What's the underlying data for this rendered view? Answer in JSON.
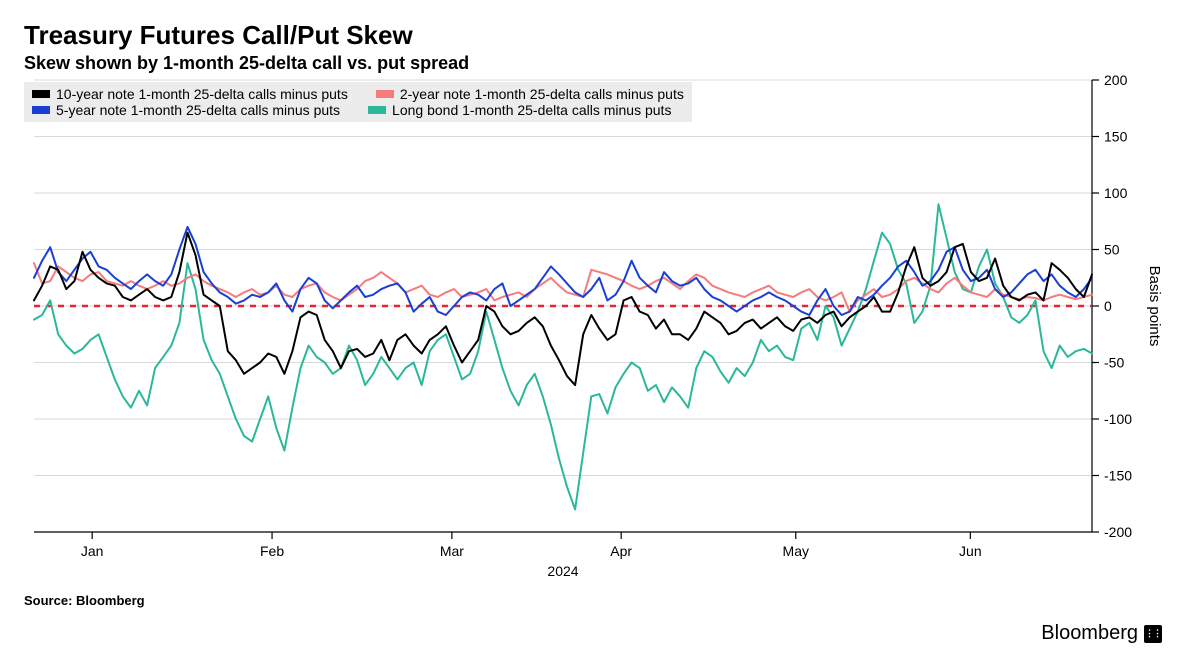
{
  "title": "Treasury Futures Call/Put Skew",
  "subtitle": "Skew shown by 1-month 25-delta call vs. put spread",
  "source": "Source: Bloomberg",
  "brand": "Bloomberg",
  "chart": {
    "type": "line",
    "background_color": "#ffffff",
    "grid_color": "#d9d9d9",
    "axis_color": "#000000",
    "zero_line_color": "#e32636",
    "zero_line_dash": "6,6",
    "zero_line_width": 2.5,
    "line_width": 2,
    "ylabel": "Basis points",
    "ylabel_fontsize": 15,
    "tick_fontsize": 14,
    "ylim": [
      -200,
      200
    ],
    "ytick_step": 50,
    "yticks": [
      -200,
      -150,
      -100,
      -50,
      0,
      50,
      100,
      150,
      200
    ],
    "x_year_label": "2024",
    "xticks": [
      "Jan",
      "Feb",
      "Mar",
      "Apr",
      "May",
      "Jun"
    ],
    "xtick_positions": [
      0.055,
      0.225,
      0.395,
      0.555,
      0.72,
      0.885
    ],
    "n_points": 132,
    "legend_bg": "#ececec",
    "legend_fontsize": 14,
    "series": [
      {
        "name": "10-year note 1-month 25-delta calls minus puts",
        "color": "#000000",
        "data": [
          5,
          18,
          35,
          32,
          15,
          22,
          48,
          32,
          25,
          20,
          18,
          8,
          5,
          10,
          15,
          8,
          5,
          8,
          30,
          65,
          45,
          10,
          5,
          0,
          -40,
          -48,
          -60,
          -55,
          -50,
          -42,
          -45,
          -60,
          -40,
          -10,
          -5,
          -8,
          -30,
          -40,
          -55,
          -40,
          -38,
          -45,
          -42,
          -30,
          -48,
          -30,
          -25,
          -35,
          -42,
          -30,
          -25,
          -18,
          -35,
          -50,
          -40,
          -30,
          0,
          -5,
          -18,
          -25,
          -22,
          -15,
          -10,
          -18,
          -35,
          -48,
          -62,
          -70,
          -25,
          -8,
          -20,
          -30,
          -25,
          5,
          8,
          -5,
          -8,
          -20,
          -12,
          -25,
          -25,
          -30,
          -20,
          -5,
          -10,
          -15,
          -25,
          -22,
          -15,
          -12,
          -20,
          -15,
          -10,
          -18,
          -22,
          -12,
          -10,
          -15,
          -8,
          -5,
          -18,
          -10,
          -5,
          0,
          8,
          -5,
          -5,
          12,
          35,
          52,
          25,
          18,
          22,
          30,
          52,
          55,
          30,
          22,
          25,
          42,
          18,
          8,
          5,
          10,
          12,
          5,
          38,
          32,
          25,
          15,
          8,
          28
        ]
      },
      {
        "name": "2-year note 1-month 25-delta calls minus puts",
        "color": "#f47c7c",
        "data": [
          38,
          20,
          22,
          35,
          30,
          25,
          22,
          28,
          30,
          22,
          20,
          18,
          22,
          18,
          15,
          18,
          22,
          18,
          20,
          25,
          28,
          22,
          18,
          15,
          12,
          8,
          12,
          15,
          10,
          12,
          18,
          10,
          8,
          15,
          18,
          20,
          12,
          8,
          5,
          10,
          15,
          22,
          25,
          30,
          25,
          20,
          12,
          15,
          18,
          10,
          8,
          12,
          15,
          8,
          10,
          12,
          15,
          5,
          8,
          10,
          12,
          8,
          15,
          20,
          25,
          18,
          12,
          10,
          8,
          32,
          30,
          28,
          25,
          22,
          18,
          15,
          18,
          22,
          25,
          20,
          15,
          22,
          28,
          25,
          18,
          15,
          12,
          10,
          8,
          12,
          15,
          18,
          12,
          10,
          8,
          12,
          15,
          8,
          5,
          8,
          12,
          -5,
          5,
          10,
          15,
          8,
          10,
          15,
          22,
          25,
          20,
          15,
          12,
          20,
          25,
          18,
          12,
          10,
          8,
          15,
          10,
          8,
          6,
          8,
          7,
          5,
          8,
          10,
          8,
          6,
          8,
          10
        ]
      },
      {
        "name": "5-year note 1-month 25-delta calls minus puts",
        "color": "#1a3fd4",
        "data": [
          25,
          40,
          52,
          30,
          22,
          32,
          42,
          48,
          35,
          32,
          25,
          20,
          15,
          22,
          28,
          22,
          18,
          28,
          50,
          70,
          55,
          30,
          20,
          12,
          8,
          2,
          5,
          10,
          8,
          12,
          20,
          5,
          -5,
          15,
          25,
          20,
          5,
          -2,
          5,
          12,
          18,
          8,
          10,
          15,
          18,
          20,
          12,
          -5,
          2,
          8,
          -5,
          -8,
          0,
          8,
          12,
          10,
          5,
          15,
          20,
          0,
          5,
          10,
          15,
          25,
          35,
          28,
          20,
          12,
          8,
          15,
          25,
          5,
          10,
          22,
          40,
          25,
          18,
          12,
          30,
          22,
          18,
          20,
          25,
          15,
          8,
          5,
          0,
          -5,
          0,
          5,
          8,
          12,
          8,
          5,
          0,
          -5,
          -8,
          5,
          15,
          0,
          -8,
          -5,
          8,
          5,
          10,
          18,
          25,
          35,
          40,
          30,
          18,
          22,
          32,
          48,
          52,
          32,
          22,
          25,
          32,
          15,
          8,
          12,
          20,
          28,
          32,
          22,
          28,
          18,
          12,
          8,
          15,
          25
        ]
      },
      {
        "name": "Long bond 1-month 25-delta calls minus puts",
        "color": "#2bb89a",
        "data": [
          -12,
          -8,
          5,
          -25,
          -35,
          -42,
          -38,
          -30,
          -25,
          -45,
          -65,
          -80,
          -90,
          -75,
          -88,
          -55,
          -45,
          -35,
          -15,
          38,
          15,
          -30,
          -48,
          -60,
          -80,
          -100,
          -115,
          -120,
          -100,
          -80,
          -108,
          -128,
          -90,
          -55,
          -35,
          -45,
          -50,
          -60,
          -55,
          -35,
          -48,
          -70,
          -60,
          -45,
          -55,
          -65,
          -55,
          -50,
          -70,
          -40,
          -30,
          -25,
          -45,
          -65,
          -60,
          -40,
          -5,
          -30,
          -55,
          -75,
          -88,
          -70,
          -60,
          -80,
          -105,
          -135,
          -160,
          -180,
          -130,
          -80,
          -78,
          -95,
          -72,
          -60,
          -50,
          -55,
          -75,
          -70,
          -85,
          -72,
          -80,
          -90,
          -55,
          -40,
          -45,
          -58,
          -68,
          -55,
          -62,
          -50,
          -30,
          -40,
          -35,
          -45,
          -48,
          -20,
          -15,
          -30,
          0,
          -10,
          -35,
          -20,
          -5,
          15,
          40,
          65,
          55,
          32,
          20,
          -15,
          -5,
          18,
          90,
          60,
          30,
          15,
          12,
          35,
          50,
          20,
          8,
          -10,
          -15,
          -8,
          5,
          -40,
          -55,
          -35,
          -45,
          -40,
          -38,
          -42
        ]
      }
    ]
  }
}
